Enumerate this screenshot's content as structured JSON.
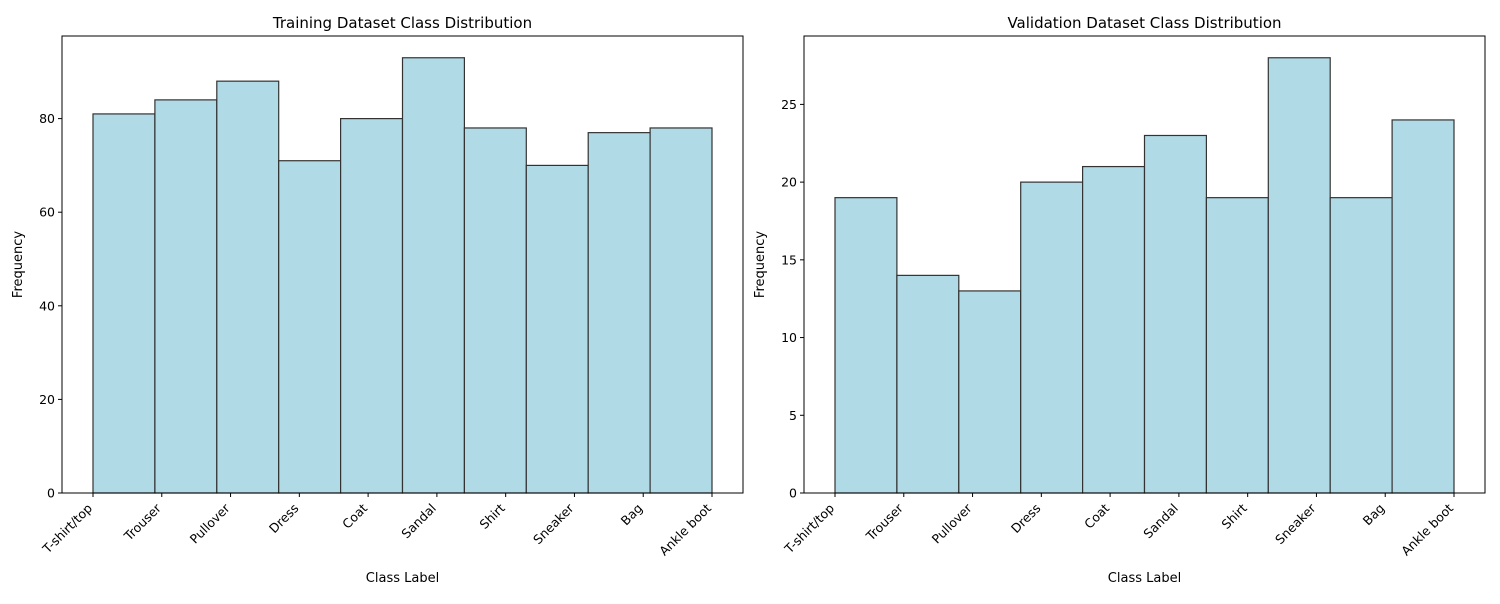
{
  "chart_data": [
    {
      "type": "bar",
      "title": "Training Dataset Class Distribution",
      "xlabel": "Class Label",
      "ylabel": "Frequency",
      "categories": [
        "T-shirt/top",
        "Trouser",
        "Pullover",
        "Dress",
        "Coat",
        "Sandal",
        "Shirt",
        "Sneaker",
        "Bag",
        "Ankle boot"
      ],
      "values": [
        81,
        84,
        88,
        71,
        80,
        93,
        78,
        70,
        77,
        78
      ],
      "yticks": [
        0,
        20,
        40,
        60,
        80
      ],
      "ylim": [
        0,
        97.65
      ],
      "grid": false,
      "bar_color": "#add8e6",
      "edge_color": "#000000"
    },
    {
      "type": "bar",
      "title": "Validation Dataset Class Distribution",
      "xlabel": "Class Label",
      "ylabel": "Frequency",
      "categories": [
        "T-shirt/top",
        "Trouser",
        "Pullover",
        "Dress",
        "Coat",
        "Sandal",
        "Shirt",
        "Sneaker",
        "Bag",
        "Ankle boot"
      ],
      "values": [
        19,
        14,
        13,
        20,
        21,
        23,
        19,
        28,
        19,
        24
      ],
      "yticks": [
        0,
        5,
        10,
        15,
        20,
        25
      ],
      "ylim": [
        0,
        29.4
      ],
      "grid": false,
      "bar_color": "#add8e6",
      "edge_color": "#000000"
    }
  ]
}
